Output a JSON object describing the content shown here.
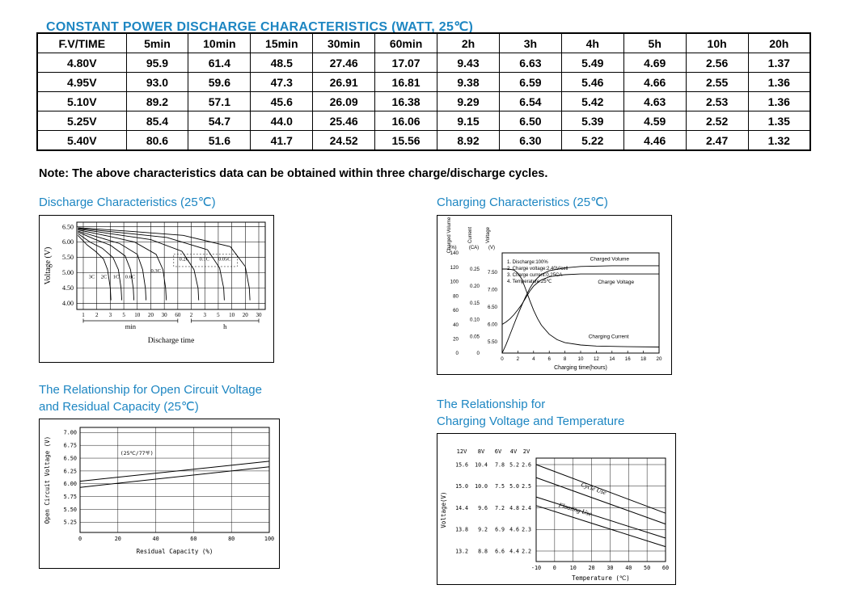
{
  "colors": {
    "accent": "#1d86c2",
    "ink": "#000000"
  },
  "header": {
    "title": "CONSTANT POWER DISCHARGE CHARACTERISTICS (WATT, 25℃)"
  },
  "table": {
    "headers": [
      "F.V/TIME",
      "5min",
      "10min",
      "15min",
      "30min",
      "60min",
      "2h",
      "3h",
      "4h",
      "5h",
      "10h",
      "20h"
    ],
    "rows": [
      {
        "label": "4.80V",
        "values": [
          "95.9",
          "61.4",
          "48.5",
          "27.46",
          "17.07",
          "9.43",
          "6.63",
          "5.49",
          "4.69",
          "2.56",
          "1.37"
        ]
      },
      {
        "label": "4.95V",
        "values": [
          "93.0",
          "59.6",
          "47.3",
          "26.91",
          "16.81",
          "9.38",
          "6.59",
          "5.46",
          "4.66",
          "2.55",
          "1.36"
        ]
      },
      {
        "label": "5.10V",
        "values": [
          "89.2",
          "57.1",
          "45.6",
          "26.09",
          "16.38",
          "9.29",
          "6.54",
          "5.42",
          "4.63",
          "2.53",
          "1.36"
        ]
      },
      {
        "label": "5.25V",
        "values": [
          "85.4",
          "54.7",
          "44.0",
          "25.46",
          "16.06",
          "9.15",
          "6.50",
          "5.39",
          "4.59",
          "2.52",
          "1.35"
        ]
      },
      {
        "label": "5.40V",
        "values": [
          "80.6",
          "51.6",
          "41.7",
          "24.52",
          "15.56",
          "8.92",
          "6.30",
          "5.22",
          "4.46",
          "2.47",
          "1.32"
        ]
      }
    ]
  },
  "note": "Note: The above characteristics data can be obtained within three charge/discharge cycles.",
  "chart_data": [
    {
      "id": "discharge",
      "type": "line",
      "title": "Discharge Characteristics (25℃)",
      "ylabel": "Voltage (V)",
      "yticks": [
        "6.50",
        "6.00",
        "5.50",
        "5.00",
        "4.50",
        "4.00"
      ],
      "ylim": [
        3.8,
        6.65
      ],
      "xlabel": "Discharge time",
      "x_groups": [
        {
          "label": "min",
          "ticks": [
            "1",
            "2",
            "3",
            "5",
            "10",
            "20",
            "30",
            "60"
          ]
        },
        {
          "label": "h",
          "ticks": [
            "2",
            "3",
            "5",
            "10",
            "20",
            "30"
          ]
        }
      ],
      "series": [
        {
          "name": "3C",
          "points": [
            [
              -0.4,
              6.22
            ],
            [
              0.3,
              5.9
            ],
            [
              0.9,
              5.7
            ],
            [
              1.5,
              5.45
            ],
            [
              1.8,
              5.1
            ],
            [
              2.0,
              4.5
            ],
            [
              2.05,
              4.1
            ]
          ]
        },
        {
          "name": "2C",
          "points": [
            [
              -0.4,
              6.28
            ],
            [
              0.5,
              6.0
            ],
            [
              1.4,
              5.8
            ],
            [
              2.2,
              5.5
            ],
            [
              2.6,
              5.1
            ],
            [
              2.8,
              4.5
            ],
            [
              2.85,
              4.1
            ]
          ]
        },
        {
          "name": "1C",
          "points": [
            [
              -0.4,
              6.33
            ],
            [
              0.8,
              6.1
            ],
            [
              2.0,
              5.9
            ],
            [
              3.1,
              5.55
            ],
            [
              3.5,
              5.1
            ],
            [
              3.7,
              4.5
            ],
            [
              3.75,
              4.1
            ]
          ]
        },
        {
          "name": "0.6C",
          "points": [
            [
              -0.4,
              6.36
            ],
            [
              1.2,
              6.15
            ],
            [
              2.7,
              5.95
            ],
            [
              4.0,
              5.6
            ],
            [
              4.4,
              5.1
            ],
            [
              4.6,
              4.5
            ],
            [
              4.65,
              4.1
            ]
          ]
        },
        {
          "name": "0.3C",
          "points": [
            [
              -0.4,
              6.4
            ],
            [
              1.8,
              6.2
            ],
            [
              3.8,
              6.0
            ],
            [
              5.4,
              5.6
            ],
            [
              5.9,
              5.1
            ],
            [
              6.1,
              4.5
            ],
            [
              6.15,
              4.1
            ]
          ]
        },
        {
          "name": "0.2C",
          "points": [
            [
              -0.4,
              6.43
            ],
            [
              2.4,
              6.25
            ],
            [
              5.0,
              6.08
            ],
            [
              7.3,
              5.7
            ],
            [
              8.2,
              5.1
            ],
            [
              8.5,
              4.5
            ],
            [
              8.55,
              4.1
            ]
          ]
        },
        {
          "name": "0.1C",
          "points": [
            [
              -0.4,
              6.45
            ],
            [
              3.0,
              6.3
            ],
            [
              6.2,
              6.15
            ],
            [
              9.2,
              5.75
            ],
            [
              10.1,
              5.15
            ],
            [
              10.4,
              4.5
            ],
            [
              10.45,
              4.1
            ]
          ]
        },
        {
          "name": "0.05C",
          "points": [
            [
              -0.4,
              6.47
            ],
            [
              3.6,
              6.35
            ],
            [
              7.4,
              6.22
            ],
            [
              10.9,
              5.85
            ],
            [
              12.0,
              5.2
            ],
            [
              12.3,
              4.5
            ],
            [
              12.35,
              4.1
            ]
          ]
        }
      ],
      "series_labels": [
        {
          "text": "3C",
          "at": [
            0.4,
            4.82
          ]
        },
        {
          "text": "2C",
          "at": [
            1.3,
            4.82
          ]
        },
        {
          "text": "1C",
          "at": [
            2.2,
            4.82
          ]
        },
        {
          "text": "0.6C",
          "at": [
            3.1,
            4.82
          ]
        },
        {
          "text": "0.3C",
          "at": [
            5.0,
            5.02
          ]
        },
        {
          "text": "0.2C",
          "at": [
            7.1,
            5.4
          ]
        },
        {
          "text": "0.1C",
          "at": [
            8.6,
            5.4
          ]
        },
        {
          "text": "0.05C",
          "at": [
            10.0,
            5.4
          ]
        }
      ],
      "dotted_box": {
        "from": [
          6.7,
          5.2
        ],
        "to": [
          11.4,
          5.6
        ]
      }
    },
    {
      "id": "charging",
      "type": "line",
      "title": "Charging Characteristics (25℃)",
      "xlabel": "Charging time(hours)",
      "xticks": [
        0,
        2,
        4,
        6,
        8,
        10,
        12,
        14,
        16,
        18,
        20
      ],
      "axes": {
        "volume": {
          "name": "Charged Volume",
          "unit": "(%)",
          "ticks": [
            "140",
            "120",
            "100",
            "80",
            "60",
            "40",
            "20",
            "0"
          ],
          "range": [
            0,
            140
          ]
        },
        "current": {
          "name": "Current",
          "unit": "(CA)",
          "ticks": [
            "0.25",
            "0.20",
            "0.15",
            "0.10",
            "0.05",
            "0"
          ],
          "range": [
            0,
            0.25
          ]
        },
        "voltage": {
          "name": "Voltage",
          "unit": "(V)",
          "ticks": [
            "7.50",
            "7.00",
            "6.50",
            "6.00",
            "5.50"
          ],
          "range": [
            5.5,
            7.5
          ]
        }
      },
      "legend": [
        "1. Discharge:100%",
        "2. Charge voltage:2.40V/cell",
        "3. Charge current:0.25CA",
        "4. Temperature:25℃"
      ],
      "series": [
        {
          "name": "Charged Volume",
          "axis": "volume",
          "label_at": [
            11.2,
            129
          ],
          "points": [
            [
              0,
              0
            ],
            [
              0.5,
              12
            ],
            [
              1,
              26
            ],
            [
              1.5,
              40
            ],
            [
              2,
              54
            ],
            [
              2.5,
              67
            ],
            [
              3,
              79
            ],
            [
              3.5,
              90
            ],
            [
              4,
              99
            ],
            [
              4.5,
              105
            ],
            [
              5,
              110
            ],
            [
              6,
              115
            ],
            [
              8,
              119
            ],
            [
              10,
              121
            ],
            [
              14,
              122
            ],
            [
              20,
              122
            ]
          ]
        },
        {
          "name": "Charge Voltage",
          "axis": "voltage",
          "label_at": [
            12.2,
            7.18
          ],
          "points": [
            [
              0,
              6.0
            ],
            [
              0.5,
              6.07
            ],
            [
              1,
              6.16
            ],
            [
              1.5,
              6.28
            ],
            [
              2,
              6.42
            ],
            [
              2.5,
              6.58
            ],
            [
              3,
              6.76
            ],
            [
              3.5,
              6.95
            ],
            [
              4,
              7.1
            ],
            [
              4.5,
              7.2
            ],
            [
              5,
              7.28
            ],
            [
              6,
              7.37
            ],
            [
              7,
              7.41
            ],
            [
              8,
              7.43
            ],
            [
              10,
              7.45
            ],
            [
              20,
              7.45
            ]
          ]
        },
        {
          "name": "Charging Current",
          "axis": "current",
          "label_at": [
            11,
            0.045
          ],
          "points": [
            [
              0,
              0.25
            ],
            [
              0.8,
              0.25
            ],
            [
              1.5,
              0.247
            ],
            [
              2,
              0.238
            ],
            [
              2.5,
              0.22
            ],
            [
              3,
              0.19
            ],
            [
              3.5,
              0.158
            ],
            [
              4,
              0.128
            ],
            [
              4.5,
              0.103
            ],
            [
              5,
              0.083
            ],
            [
              6,
              0.056
            ],
            [
              7,
              0.04
            ],
            [
              8,
              0.031
            ],
            [
              10,
              0.024
            ],
            [
              12,
              0.021
            ],
            [
              16,
              0.019
            ],
            [
              20,
              0.018
            ]
          ]
        }
      ]
    },
    {
      "id": "ocv",
      "type": "line",
      "title_lines": [
        "The Relationship for Open Circuit Voltage",
        "and Residual Capacity (25℃)"
      ],
      "ylabel": "Open Circuit Voltage (V)",
      "yticks": [
        "7.00",
        "6.75",
        "6.50",
        "6.25",
        "6.00",
        "5.75",
        "5.50",
        "5.25"
      ],
      "ylim": [
        5.05,
        7.1
      ],
      "xticks": [
        "0",
        "20",
        "40",
        "60",
        "80",
        "100"
      ],
      "xlabel": "Residual Capacity (%)",
      "annotation": "(25℃/77℉)",
      "annotation_at": [
        30,
        6.56
      ],
      "series": [
        {
          "name": "upper",
          "points": [
            [
              0,
              6.05
            ],
            [
              100,
              6.44
            ]
          ]
        },
        {
          "name": "lower",
          "points": [
            [
              0,
              5.93
            ],
            [
              100,
              6.33
            ]
          ]
        }
      ]
    },
    {
      "id": "temp",
      "type": "line",
      "title_lines": [
        "The Relationship for",
        "Charging Voltage and Temperature"
      ],
      "ylabel": "Voltage(V)",
      "col_headers": [
        "12V",
        "8V",
        "6V",
        "4V",
        "2V"
      ],
      "tick_rows": [
        [
          "15.6",
          "10.4",
          "7.8",
          "5.2",
          "2.6"
        ],
        [
          "15.0",
          "10.0",
          "7.5",
          "5.0",
          "2.5"
        ],
        [
          "14.4",
          "9.6",
          "7.2",
          "4.8",
          "2.4"
        ],
        [
          "13.8",
          "9.2",
          "6.9",
          "4.6",
          "2.3"
        ],
        [
          "13.2",
          "8.8",
          "6.6",
          "4.4",
          "2.2"
        ]
      ],
      "xticks": [
        -10,
        0,
        10,
        20,
        30,
        40,
        50,
        60
      ],
      "xlabel": "Temperature (℃)",
      "bands": [
        {
          "name": "Cycle Use",
          "upper": [
            [
              -10,
              2.6
            ],
            [
              60,
              2.375
            ]
          ],
          "lower": [
            [
              -10,
              2.54
            ],
            [
              60,
              2.325
            ]
          ],
          "label_at": [
            14,
            2.5
          ],
          "label_rot": 19
        },
        {
          "name": "Floating Use",
          "upper": [
            [
              -10,
              2.45
            ],
            [
              60,
              2.26
            ]
          ],
          "lower": [
            [
              -10,
              2.41
            ],
            [
              60,
              2.22
            ]
          ],
          "label_at": [
            2,
            2.405
          ],
          "label_rot": 16
        }
      ]
    }
  ]
}
